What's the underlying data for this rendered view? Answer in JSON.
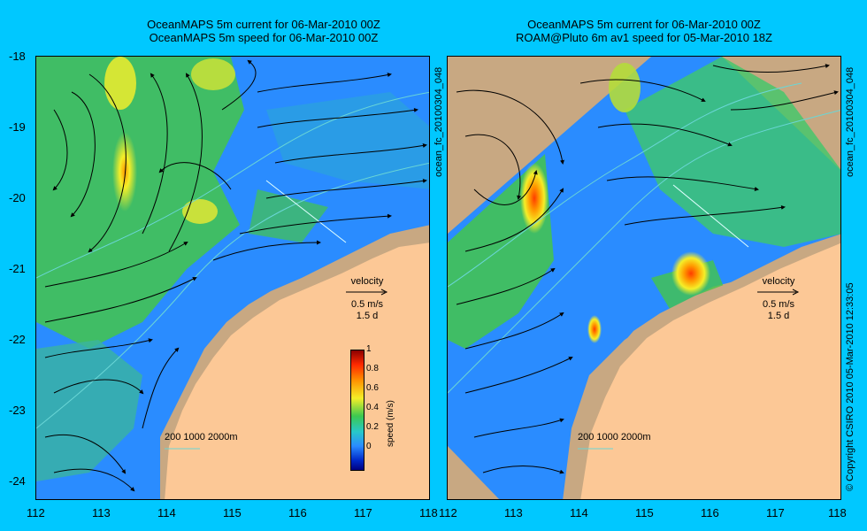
{
  "panels": [
    {
      "title1": "OceanMAPS 5m current for 06-Mar-2010 00Z",
      "title2": "OceanMAPS 5m speed for 06-Mar-2010 00Z"
    },
    {
      "title1": "OceanMAPS 5m current for 06-Mar-2010 00Z",
      "title2": "ROAM@Pluto 6m av1 speed for 05-Mar-2010 18Z"
    }
  ],
  "y_ticks": [
    "-18",
    "-19",
    "-20",
    "-21",
    "-22",
    "-23",
    "-24"
  ],
  "x_ticks": [
    "112",
    "113",
    "114",
    "115",
    "116",
    "117",
    "118"
  ],
  "velocity": {
    "label": "velocity",
    "scale": "0.5 m/s",
    "duration": "1.5 d"
  },
  "isobaths": "200  1000  2000m",
  "colorbar": {
    "label": "speed (m/s)",
    "ticks": [
      "1",
      "0.8",
      "0.6",
      "0.4",
      "0.2",
      "0"
    ]
  },
  "side_text": {
    "left_id": "ocean_fc_20100304_048",
    "right_id": "ocean_fc_20100304_048",
    "copyright": "© Copyright CSIRO 2010   05-Mar-2010 12:33:05"
  },
  "colors": {
    "background": "#00c8ff",
    "land_light": "#fcc896",
    "land_dark": "#c8a882",
    "ocean_blue": "#2a8cff",
    "ocean_green": "#3cc850"
  }
}
